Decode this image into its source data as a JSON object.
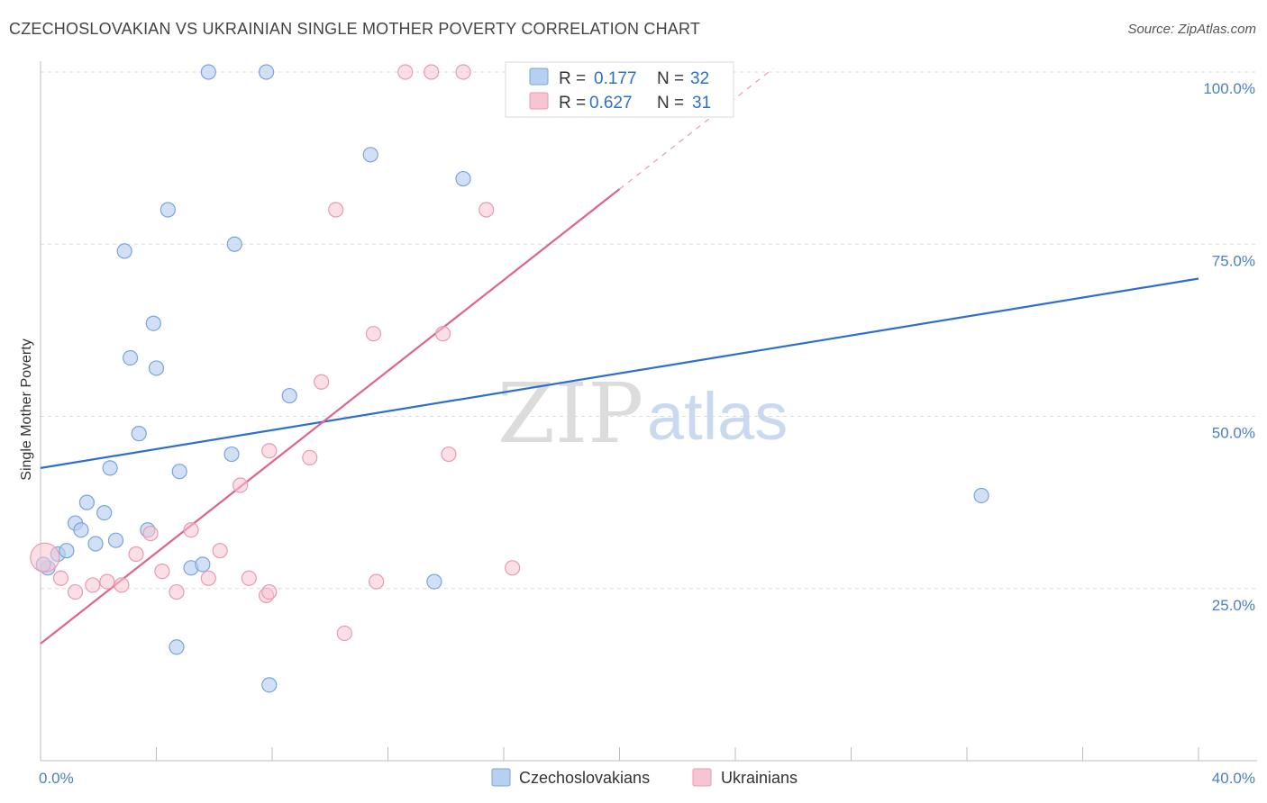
{
  "title": "CZECHOSLOVAKIAN VS UKRAINIAN SINGLE MOTHER POVERTY CORRELATION CHART",
  "source": "Source: ZipAtlas.com",
  "watermark": {
    "zip": "ZIP",
    "atlas": "atlas"
  },
  "colors": {
    "blue_fill": "#b8d0f0",
    "blue_stroke": "#7aa5da",
    "blue_line": "#2e6fcc",
    "pink_fill": "#f7c4d3",
    "pink_stroke": "#e99ab1",
    "pink_line": "#e0638c",
    "grid": "#dcdcdc",
    "tick_text": "#4a7fc9"
  },
  "legend": {
    "rows": [
      {
        "r_label": "R =",
        "r_value": "0.177",
        "n_label": "N =",
        "n_value": "32"
      },
      {
        "r_label": "R =",
        "r_value": "0.627",
        "n_label": "N =",
        "n_value": "31"
      }
    ]
  },
  "chart_data": {
    "type": "scatter",
    "title": "CZECHOSLOVAKIAN VS UKRAINIAN SINGLE MOTHER POVERTY CORRELATION CHART",
    "xlabel": "",
    "ylabel": "Single Mother Poverty",
    "xlim": [
      0,
      40
    ],
    "ylim": [
      0,
      100
    ],
    "x_tick_labels": [
      "0.0%",
      "40.0%"
    ],
    "y_ticks": [
      25,
      50,
      75,
      100
    ],
    "y_tick_labels": [
      "25.0%",
      "50.0%",
      "75.0%",
      "100.0%"
    ],
    "legend_labels": [
      "Czechoslovakians",
      "Ukrainians"
    ],
    "series": [
      {
        "name": "Czechoslovakians",
        "color": "blue",
        "points": [
          {
            "x": 0.25,
            "y": 28.0
          },
          {
            "x": 0.6,
            "y": 30.0
          },
          {
            "x": 0.9,
            "y": 30.5
          },
          {
            "x": 1.2,
            "y": 34.5
          },
          {
            "x": 1.4,
            "y": 33.5
          },
          {
            "x": 1.6,
            "y": 37.5
          },
          {
            "x": 1.9,
            "y": 31.5
          },
          {
            "x": 2.2,
            "y": 36.0
          },
          {
            "x": 2.4,
            "y": 42.5
          },
          {
            "x": 2.6,
            "y": 32.0
          },
          {
            "x": 2.9,
            "y": 74.0
          },
          {
            "x": 3.1,
            "y": 58.5
          },
          {
            "x": 3.4,
            "y": 47.5
          },
          {
            "x": 3.7,
            "y": 33.5
          },
          {
            "x": 3.9,
            "y": 63.5
          },
          {
            "x": 4.0,
            "y": 57.0
          },
          {
            "x": 4.4,
            "y": 80.0
          },
          {
            "x": 4.7,
            "y": 16.5
          },
          {
            "x": 4.8,
            "y": 42.0
          },
          {
            "x": 5.2,
            "y": 28.0
          },
          {
            "x": 5.6,
            "y": 28.5
          },
          {
            "x": 5.8,
            "y": 100.0
          },
          {
            "x": 6.6,
            "y": 44.5
          },
          {
            "x": 6.7,
            "y": 75.0
          },
          {
            "x": 7.8,
            "y": 100.0
          },
          {
            "x": 7.9,
            "y": 11.0
          },
          {
            "x": 8.6,
            "y": 53.0
          },
          {
            "x": 11.4,
            "y": 88.0
          },
          {
            "x": 13.6,
            "y": 26.0
          },
          {
            "x": 14.6,
            "y": 84.5
          },
          {
            "x": 32.5,
            "y": 38.5
          },
          {
            "x": 0.1,
            "y": 28.5
          }
        ],
        "trend": {
          "x_start": 0,
          "y_start": 42.5,
          "x_end": 40,
          "y_end": 70.0
        }
      },
      {
        "name": "Ukrainians",
        "color": "pink",
        "points": [
          {
            "x": 0.15,
            "y": 29.5
          },
          {
            "x": 0.7,
            "y": 26.5
          },
          {
            "x": 1.2,
            "y": 24.5
          },
          {
            "x": 1.8,
            "y": 25.5
          },
          {
            "x": 2.3,
            "y": 26.0
          },
          {
            "x": 2.8,
            "y": 25.5
          },
          {
            "x": 3.3,
            "y": 30.0
          },
          {
            "x": 3.8,
            "y": 33.0
          },
          {
            "x": 4.2,
            "y": 27.5
          },
          {
            "x": 4.7,
            "y": 24.5
          },
          {
            "x": 5.2,
            "y": 33.5
          },
          {
            "x": 5.8,
            "y": 26.5
          },
          {
            "x": 6.2,
            "y": 30.5
          },
          {
            "x": 6.9,
            "y": 40.0
          },
          {
            "x": 7.2,
            "y": 26.5
          },
          {
            "x": 7.8,
            "y": 24.0
          },
          {
            "x": 7.9,
            "y": 24.5
          },
          {
            "x": 7.9,
            "y": 45.0
          },
          {
            "x": 9.3,
            "y": 44.0
          },
          {
            "x": 9.7,
            "y": 55.0
          },
          {
            "x": 10.2,
            "y": 80.0
          },
          {
            "x": 10.5,
            "y": 18.5
          },
          {
            "x": 11.5,
            "y": 62.0
          },
          {
            "x": 11.6,
            "y": 26.0
          },
          {
            "x": 12.6,
            "y": 100.0
          },
          {
            "x": 13.5,
            "y": 100.0
          },
          {
            "x": 13.9,
            "y": 62.0
          },
          {
            "x": 14.1,
            "y": 44.5
          },
          {
            "x": 14.6,
            "y": 100.0
          },
          {
            "x": 15.4,
            "y": 80.0
          },
          {
            "x": 16.3,
            "y": 28.0
          }
        ],
        "trend": {
          "x_start": 0,
          "y_start": 17.0,
          "x_end": 20,
          "y_end": 83.0,
          "dashed_to_x": 25.3
        }
      }
    ]
  }
}
